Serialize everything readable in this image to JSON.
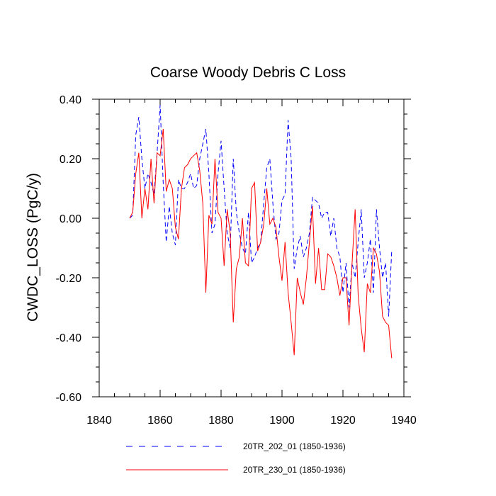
{
  "chart_data": {
    "type": "line",
    "title": "Coarse Woody Debris C Loss",
    "xlabel": "",
    "ylabel": "CWDC_LOSS  (PgC/y)",
    "xlim": [
      1840,
      1940
    ],
    "ylim": [
      -0.6,
      0.4
    ],
    "xticks": [
      1840,
      1860,
      1880,
      1900,
      1920,
      1940
    ],
    "xtick_labels": [
      "1840",
      "1860",
      "1880",
      "1900",
      "1920",
      "1940"
    ],
    "yticks": [
      -0.6,
      -0.4,
      -0.2,
      0.0,
      0.2,
      0.4
    ],
    "ytick_labels": [
      "-0.60",
      "-0.40",
      "-0.20",
      "0.00",
      "0.20",
      "0.40"
    ],
    "legend_position": "bottom",
    "x": [
      1850,
      1851,
      1852,
      1853,
      1854,
      1855,
      1856,
      1857,
      1858,
      1859,
      1860,
      1861,
      1862,
      1863,
      1864,
      1865,
      1866,
      1867,
      1868,
      1869,
      1870,
      1871,
      1872,
      1873,
      1874,
      1875,
      1876,
      1877,
      1878,
      1879,
      1880,
      1881,
      1882,
      1883,
      1884,
      1885,
      1886,
      1887,
      1888,
      1889,
      1890,
      1891,
      1892,
      1893,
      1894,
      1895,
      1896,
      1897,
      1898,
      1899,
      1900,
      1901,
      1902,
      1903,
      1904,
      1905,
      1906,
      1907,
      1908,
      1909,
      1910,
      1911,
      1912,
      1913,
      1914,
      1915,
      1916,
      1917,
      1918,
      1919,
      1920,
      1921,
      1922,
      1923,
      1924,
      1925,
      1926,
      1927,
      1928,
      1929,
      1930,
      1931,
      1932,
      1933,
      1934,
      1935,
      1936
    ],
    "series": [
      {
        "name": "20TR_202_01 (1850-1936)",
        "color": "#0000ff",
        "style": "dashed",
        "values": [
          0.0,
          0.01,
          0.28,
          0.34,
          0.2,
          0.1,
          0.15,
          0.12,
          0.08,
          0.22,
          0.38,
          0.12,
          -0.08,
          0.04,
          -0.05,
          -0.09,
          0.13,
          0.1,
          0.1,
          0.12,
          0.15,
          0.1,
          0.11,
          0.2,
          0.25,
          0.3,
          0.15,
          -0.05,
          -0.02,
          0.15,
          0.26,
          0.1,
          -0.05,
          -0.1,
          0.2,
          0.02,
          -0.05,
          -0.1,
          -0.12,
          0.02,
          -0.15,
          -0.13,
          -0.1,
          -0.08,
          0.05,
          0.17,
          0.2,
          0.05,
          -0.07,
          -0.05,
          0.06,
          0.08,
          0.33,
          0.2,
          -0.17,
          -0.1,
          -0.06,
          -0.13,
          -0.1,
          -0.05,
          0.07,
          0.06,
          0.05,
          0.0,
          0.02,
          0.02,
          -0.06,
          0.0,
          -0.1,
          -0.13,
          -0.25,
          -0.15,
          -0.3,
          -0.15,
          -0.2,
          -0.08,
          0.03,
          -0.2,
          -0.15,
          -0.07,
          -0.25,
          0.03,
          -0.1,
          -0.2,
          -0.15,
          -0.33,
          -0.11
        ]
      },
      {
        "name": "20TR_230_01 (1850-1936)",
        "color": "#ff0000",
        "style": "solid",
        "values": [
          0.0,
          0.02,
          0.15,
          0.22,
          0.0,
          0.1,
          0.03,
          0.2,
          0.05,
          0.22,
          0.21,
          0.3,
          0.09,
          0.13,
          0.1,
          -0.03,
          -0.07,
          0.1,
          0.17,
          0.18,
          0.2,
          0.21,
          0.22,
          0.16,
          0.05,
          -0.25,
          0.01,
          -0.02,
          0.2,
          0.02,
          0.0,
          -0.16,
          0.03,
          -0.05,
          -0.35,
          -0.17,
          -0.13,
          0.0,
          -0.15,
          -0.16,
          0.1,
          0.12,
          -0.11,
          -0.08,
          -0.02,
          0.1,
          -0.02,
          0.0,
          -0.03,
          -0.13,
          -0.21,
          -0.08,
          -0.25,
          -0.35,
          -0.46,
          -0.2,
          -0.25,
          -0.29,
          -0.2,
          -0.08,
          0.04,
          -0.22,
          -0.1,
          -0.24,
          -0.24,
          -0.12,
          -0.13,
          -0.16,
          -0.2,
          -0.26,
          -0.2,
          -0.2,
          -0.36,
          -0.15,
          0.03,
          -0.26,
          -0.37,
          -0.45,
          -0.22,
          -0.25,
          -0.1,
          -0.12,
          -0.18,
          -0.33,
          -0.35,
          -0.36,
          -0.47
        ]
      }
    ]
  }
}
